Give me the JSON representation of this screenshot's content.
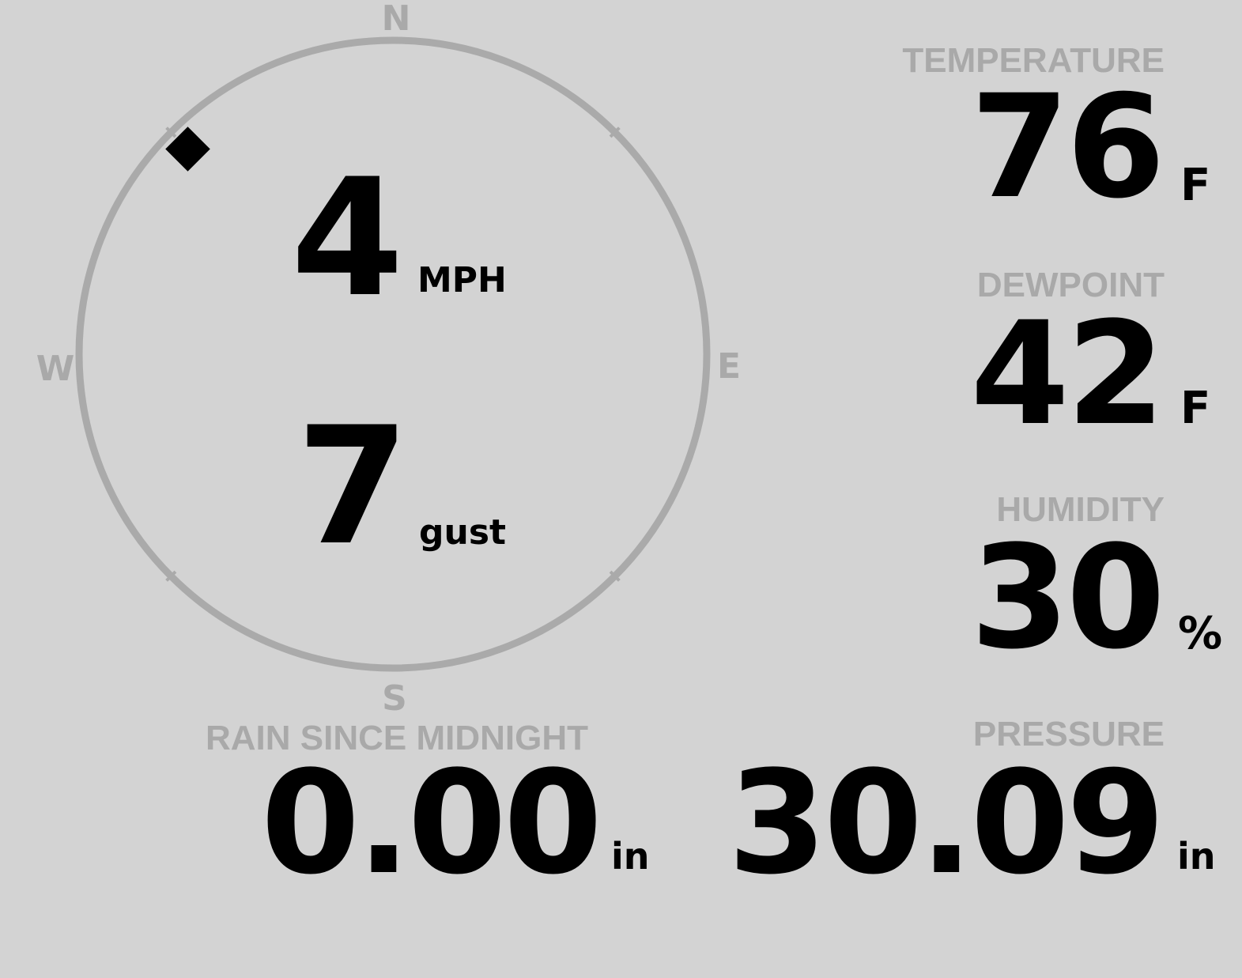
{
  "wind": {
    "compass": {
      "n": "N",
      "e": "E",
      "s": "S",
      "w": "W"
    },
    "direction_deg": 315,
    "speed": "4",
    "speed_unit": "MPH",
    "gust": "7",
    "gust_label": "gust",
    "ring_color": "#aaaaaa",
    "indicator_color": "#000000"
  },
  "temperature": {
    "label": "TEMPERATURE",
    "value": "76",
    "unit": "F"
  },
  "dewpoint": {
    "label": "DEWPOINT",
    "value": "42",
    "unit": "F"
  },
  "humidity": {
    "label": "HUMIDITY",
    "value": "30",
    "unit": "%"
  },
  "pressure": {
    "label": "PRESSURE",
    "value": "30.09",
    "unit": "in"
  },
  "rain": {
    "label": "RAIN SINCE MIDNIGHT",
    "value": "0.00",
    "unit": "in"
  }
}
